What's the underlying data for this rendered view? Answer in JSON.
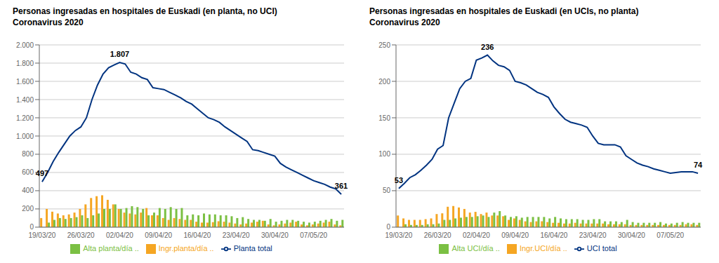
{
  "chart_data": [
    {
      "type": "bar",
      "title": "Personas ingresadas en hospitales de Euskadi (en planta, no UCI)\nCoronavirus 2020",
      "categories": [
        "19/03/20",
        null,
        null,
        null,
        null,
        null,
        null,
        "26/03/20",
        null,
        null,
        null,
        null,
        null,
        null,
        "02/04/20",
        null,
        null,
        null,
        null,
        null,
        null,
        "09/04/20",
        null,
        null,
        null,
        null,
        null,
        null,
        "16/04/20",
        null,
        null,
        null,
        null,
        null,
        null,
        "23/04/20",
        null,
        null,
        null,
        null,
        null,
        null,
        "30/04/20",
        null,
        null,
        null,
        null,
        null,
        null,
        "07/05/20",
        null,
        null,
        null,
        null,
        null
      ],
      "series": [
        {
          "name": "Ingr.planta/día ..",
          "type": "bar",
          "color": "#f5a623",
          "values": [
            100,
            200,
            170,
            150,
            130,
            140,
            160,
            200,
            250,
            320,
            340,
            350,
            300,
            250,
            200,
            160,
            150,
            140,
            160,
            210,
            130,
            130,
            100,
            80,
            100,
            90,
            80,
            80,
            60,
            50,
            50,
            55,
            65,
            60,
            50,
            40,
            30,
            40,
            50,
            60,
            70,
            30,
            20,
            30,
            40,
            50,
            60,
            30,
            20,
            30,
            40,
            50,
            60,
            30,
            20
          ]
        },
        {
          "name": "Alta planta/día ..",
          "type": "bar",
          "color": "#7bc043",
          "values": [
            0,
            50,
            80,
            100,
            90,
            100,
            110,
            130,
            100,
            130,
            150,
            200,
            200,
            250,
            200,
            210,
            230,
            220,
            200,
            130,
            160,
            210,
            200,
            220,
            200,
            210,
            130,
            140,
            130,
            150,
            140,
            140,
            130,
            130,
            120,
            100,
            110,
            90,
            80,
            80,
            70,
            90,
            60,
            70,
            80,
            80,
            70,
            60,
            50,
            60,
            70,
            80,
            90,
            70,
            80
          ]
        },
        {
          "name": "Planta total",
          "type": "line",
          "color": "#003380",
          "values": [
            497,
            600,
            720,
            820,
            910,
            1000,
            1060,
            1100,
            1200,
            1400,
            1560,
            1680,
            1750,
            1780,
            1807,
            1790,
            1700,
            1680,
            1640,
            1620,
            1530,
            1520,
            1510,
            1480,
            1450,
            1420,
            1380,
            1350,
            1300,
            1250,
            1200,
            1180,
            1150,
            1100,
            1060,
            1020,
            980,
            940,
            850,
            840,
            820,
            800,
            780,
            700,
            660,
            630,
            600,
            570,
            540,
            510,
            490,
            470,
            440,
            420,
            361
          ]
        }
      ],
      "ylim": [
        0,
        2000
      ],
      "yticks": [
        0,
        200,
        400,
        600,
        800,
        {
          "value": 1000,
          "label": "1.000"
        },
        {
          "value": 1200,
          "label": "1.200"
        },
        {
          "value": 1400,
          "label": "1.400"
        },
        {
          "value": 1600,
          "label": "1.600"
        },
        {
          "value": 1800,
          "label": "1.800"
        },
        {
          "value": 2000,
          "label": "2.000"
        }
      ],
      "annotations": [
        {
          "text": "1.807",
          "x": 14,
          "y": 1807
        },
        {
          "text": "497",
          "x": 0,
          "y": 497
        },
        {
          "text": "361",
          "x": 54,
          "y": 361
        }
      ],
      "grid": true,
      "legend": "bottom"
    },
    {
      "type": "bar",
      "title": "Personas ingresadas en hospitales de Euskadi (en UCIs, no planta)\nCoronavirus 2020",
      "categories": [
        "19/03/20",
        null,
        null,
        null,
        null,
        null,
        null,
        "26/03/20",
        null,
        null,
        null,
        null,
        null,
        null,
        "02/04/20",
        null,
        null,
        null,
        null,
        null,
        null,
        "09/04/20",
        null,
        null,
        null,
        null,
        null,
        null,
        "16/04/20",
        null,
        null,
        null,
        null,
        null,
        null,
        "23/04/20",
        null,
        null,
        null,
        null,
        null,
        null,
        "30/04/20",
        null,
        null,
        null,
        null,
        null,
        null,
        "07/05/20",
        null,
        null,
        null,
        null,
        null
      ],
      "series": [
        {
          "name": "Ingr.UCI/día ..",
          "type": "bar",
          "color": "#f5a623",
          "values": [
            16,
            12,
            10,
            10,
            10,
            11,
            12,
            18,
            19,
            28,
            29,
            27,
            25,
            20,
            21,
            18,
            20,
            16,
            16,
            15,
            10,
            12,
            10,
            8,
            7,
            8,
            8,
            7,
            6,
            6,
            5,
            5,
            6,
            5,
            5,
            5,
            5,
            5,
            4,
            4,
            4,
            4,
            3,
            3,
            3,
            3,
            3,
            3,
            3,
            3,
            3,
            3,
            4,
            4,
            3
          ]
        },
        {
          "name": "Alta UCI/día ..",
          "type": "bar",
          "color": "#7bc043",
          "values": [
            0,
            4,
            3,
            3,
            3,
            4,
            4,
            5,
            10,
            10,
            12,
            13,
            14,
            14,
            15,
            16,
            14,
            20,
            22,
            16,
            14,
            15,
            13,
            14,
            14,
            14,
            14,
            12,
            14,
            12,
            11,
            11,
            11,
            10,
            10,
            11,
            11,
            8,
            8,
            8,
            7,
            10,
            7,
            6,
            6,
            6,
            6,
            7,
            5,
            5,
            6,
            7,
            6,
            6,
            6
          ]
        },
        {
          "name": "UCI total",
          "type": "line",
          "color": "#003380",
          "values": [
            53,
            60,
            68,
            72,
            78,
            85,
            93,
            107,
            112,
            150,
            170,
            190,
            200,
            204,
            229,
            232,
            236,
            228,
            222,
            220,
            215,
            200,
            198,
            195,
            190,
            185,
            182,
            178,
            165,
            156,
            148,
            144,
            142,
            140,
            137,
            125,
            115,
            113,
            113,
            113,
            110,
            98,
            93,
            88,
            85,
            83,
            80,
            78,
            76,
            74,
            75,
            76,
            76,
            76,
            74
          ]
        }
      ],
      "ylim": [
        0,
        250
      ],
      "yticks": [
        0,
        50,
        100,
        150,
        200,
        250
      ],
      "annotations": [
        {
          "text": "236",
          "x": 16,
          "y": 236
        },
        {
          "text": "53",
          "x": 0,
          "y": 53
        },
        {
          "text": "74",
          "x": 54,
          "y": 74
        }
      ],
      "grid": true,
      "legend": "bottom"
    }
  ]
}
